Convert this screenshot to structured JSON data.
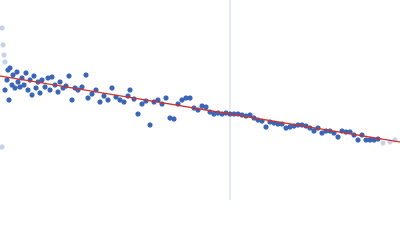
{
  "chart_data": {
    "type": "scatter",
    "xlim": [
      0,
      400
    ],
    "ylim": [
      0,
      200
    ],
    "vline": {
      "x": 230,
      "color": "#c8d4e4"
    },
    "series": [
      {
        "color": "#c5d3ea",
        "x": [
          2,
          3,
          4,
          2,
          5,
          383,
          390,
          395
        ],
        "values": [
          172,
          155,
          145,
          53,
          138,
          57,
          58,
          60
        ]
      },
      {
        "color": "#3a66b5",
        "x": [
          5,
          7,
          8,
          9,
          10,
          12,
          13,
          15,
          17,
          18,
          20,
          22,
          24,
          26,
          28,
          30,
          32,
          34,
          36,
          38,
          40,
          42,
          45,
          48,
          50,
          52,
          55,
          58,
          60,
          63,
          66,
          69,
          72,
          75,
          78,
          82,
          86,
          88,
          92,
          96,
          100,
          104,
          108,
          112,
          116,
          120,
          124,
          128,
          130,
          134,
          138,
          142,
          146,
          150,
          154,
          158,
          162,
          166,
          170,
          174,
          178,
          182,
          186,
          190,
          194,
          198,
          202,
          206,
          210,
          214,
          218,
          222,
          226,
          230,
          234,
          238,
          242,
          246,
          250,
          254,
          258,
          262,
          266,
          270,
          274,
          278,
          282,
          286,
          290,
          294,
          298,
          302,
          306,
          310,
          314,
          318,
          322,
          326,
          330,
          334,
          338,
          342,
          346,
          350,
          354,
          358,
          362,
          366,
          370,
          374,
          378
        ],
        "values": [
          110,
          120,
          130,
          100,
          132,
          115,
          125,
          112,
          128,
          118,
          113,
          122,
          115,
          127,
          110,
          120,
          105,
          124,
          112,
          118,
          107,
          120,
          113,
          122,
          110,
          123,
          115,
          108,
          118,
          112,
          114,
          124,
          100,
          112,
          110,
          113,
          125,
          102,
          106,
          110,
          98,
          104,
          100,
          112,
          103,
          100,
          98,
          104,
          110,
          101,
          86,
          96,
          99,
          75,
          98,
          100,
          96,
          102,
          82,
          81,
          96,
          100,
          102,
          102,
          92,
          90,
          94,
          93,
          88,
          86,
          87,
          86,
          87,
          86,
          86,
          86,
          85,
          84,
          85,
          82,
          80,
          79,
          73,
          78,
          77,
          76,
          76,
          72,
          73,
          74,
          75,
          75,
          74,
          72,
          69,
          72,
          67,
          69,
          69,
          67,
          63,
          69,
          68,
          68,
          65,
          60,
          65,
          60,
          60,
          60,
          61
        ]
      }
    ],
    "fit": {
      "color": "#d0302f",
      "x": [
        0,
        400
      ],
      "values": [
        124,
        58
      ]
    }
  }
}
